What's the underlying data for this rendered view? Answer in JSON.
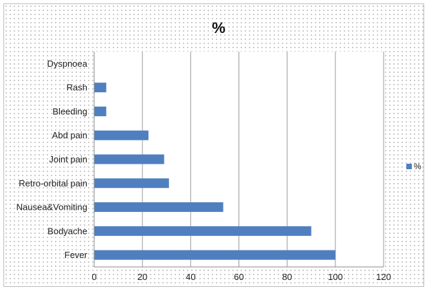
{
  "chart_data": {
    "type": "bar",
    "orientation": "horizontal",
    "title": "%",
    "categories": [
      "Dyspnoea",
      "Rash",
      "Bleeding",
      "Abd pain",
      "Joint pain",
      "Retro-orbital pain",
      "Nausea&Vomiting",
      "Bodyache",
      "Fever"
    ],
    "series": [
      {
        "name": "%",
        "values": [
          0,
          5,
          5,
          22.5,
          29,
          31,
          53.5,
          90,
          100
        ]
      }
    ],
    "xlim": [
      0,
      120
    ],
    "xticks": [
      0,
      20,
      40,
      60,
      80,
      100,
      120
    ],
    "grid": true,
    "legend": "right",
    "bar_color": "#4f7fbf"
  }
}
